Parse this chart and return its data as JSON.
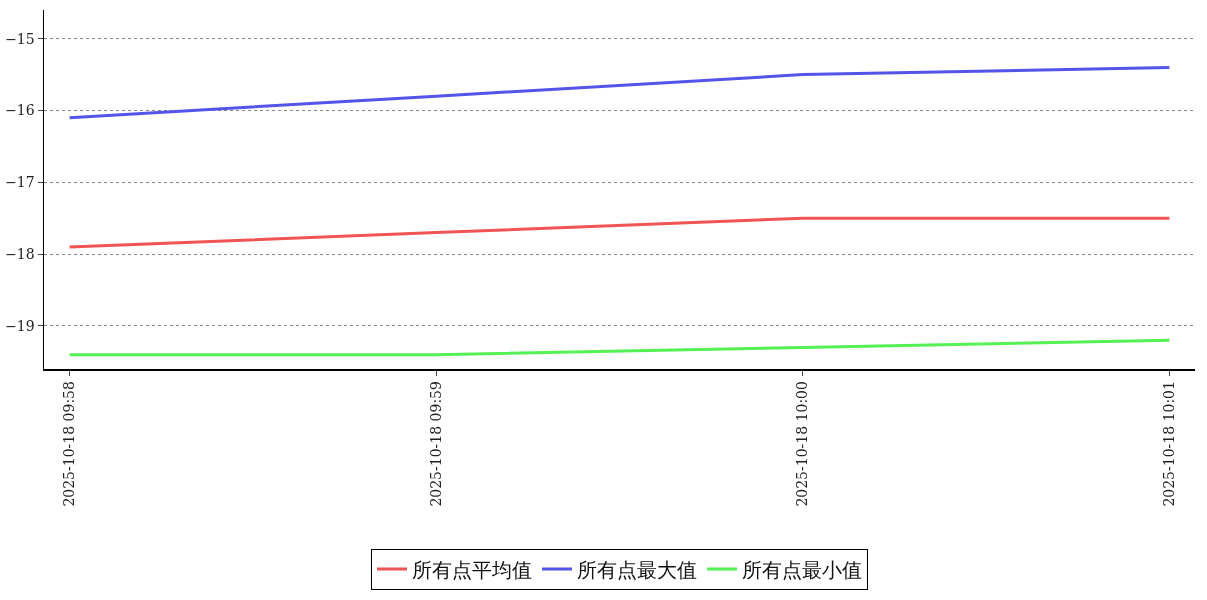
{
  "chart_data": {
    "type": "line",
    "categories": [
      "2025-10-18 09:58",
      "2025-10-18 09:59",
      "2025-10-18 10:00",
      "2025-10-18 10:01"
    ],
    "series": [
      {
        "name": "所有点平均值",
        "color": "#f05454",
        "values": [
          -17.9,
          -17.7,
          -17.5,
          -17.5
        ]
      },
      {
        "name": "所有点最大值",
        "color": "#5454e8",
        "values": [
          -16.1,
          -15.8,
          -15.5,
          -15.4
        ]
      },
      {
        "name": "所有点最小值",
        "color": "#54f054",
        "values": [
          -19.4,
          -19.4,
          -19.3,
          -19.2
        ]
      }
    ],
    "ylim": [
      -19.6,
      -14.6
    ],
    "yticks": [
      -19,
      -18,
      -17,
      -16,
      -15
    ],
    "grid": "y",
    "legend": "bottom",
    "marker": "none",
    "line_style": "solid"
  }
}
